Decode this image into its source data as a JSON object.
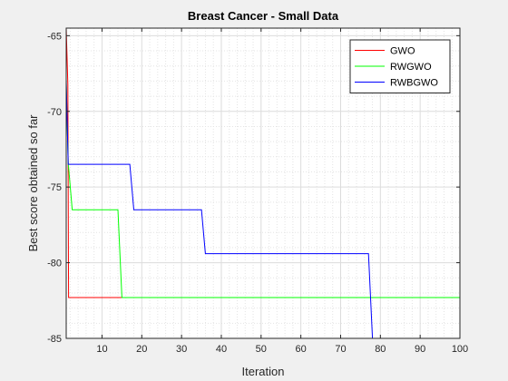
{
  "chart_data": {
    "type": "line",
    "title": "Breast Cancer - Small Data",
    "xlabel": "Iteration",
    "ylabel": "Best score obtained so far",
    "xlim": [
      1,
      100
    ],
    "ylim": [
      -85,
      -64.5
    ],
    "xticks": [
      10,
      20,
      30,
      40,
      50,
      60,
      70,
      80,
      90,
      100
    ],
    "yticks": [
      -85,
      -80,
      -75,
      -70,
      -65
    ],
    "grid": true,
    "legend_location": "top-right",
    "series": [
      {
        "name": "GWO",
        "color": "#ff0000",
        "points": [
          [
            1,
            -64.5
          ],
          [
            1.4,
            -68.2
          ],
          [
            1.6,
            -82.3
          ],
          [
            15,
            -82.3
          ]
        ]
      },
      {
        "name": "RWGWO",
        "color": "#00ff00",
        "points": [
          [
            1,
            -68.2
          ],
          [
            1.5,
            -73.4
          ],
          [
            2.5,
            -76.5
          ],
          [
            14,
            -76.5
          ],
          [
            15,
            -82.3
          ],
          [
            100,
            -82.3
          ]
        ]
      },
      {
        "name": "RWBGWO",
        "color": "#0000ff",
        "points": [
          [
            1,
            -67.9
          ],
          [
            1.5,
            -73.5
          ],
          [
            17,
            -73.5
          ],
          [
            18,
            -76.5
          ],
          [
            35,
            -76.5
          ],
          [
            36,
            -79.4
          ],
          [
            77,
            -79.4
          ],
          [
            78,
            -85
          ],
          [
            100,
            -85
          ]
        ]
      }
    ]
  }
}
